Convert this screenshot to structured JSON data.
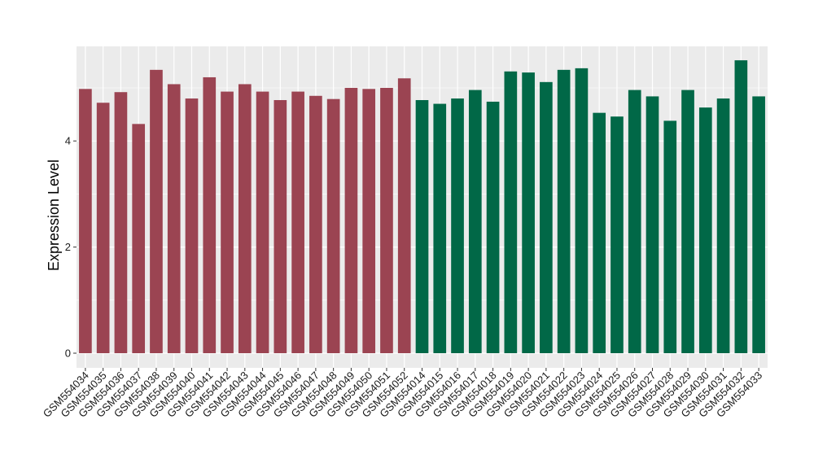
{
  "chart_data": {
    "type": "bar",
    "title": "",
    "xlabel": "",
    "ylabel": "Expression Level",
    "ylim": [
      0,
      5.8
    ],
    "yticks": [
      0,
      2,
      4
    ],
    "grid": true,
    "legend": "none",
    "panel_background": "#ebebeb",
    "grid_color": "#ffffff",
    "colors": {
      "group_a": "#9b4452",
      "group_b": "#016847"
    },
    "categories": [
      "GSM554034",
      "GSM554035",
      "GSM554036",
      "GSM554037",
      "GSM554038",
      "GSM554039",
      "GSM554040",
      "GSM554041",
      "GSM554042",
      "GSM554043",
      "GSM554044",
      "GSM554045",
      "GSM554046",
      "GSM554047",
      "GSM554048",
      "GSM554049",
      "GSM554050",
      "GSM554051",
      "GSM554052",
      "GSM554014",
      "GSM554015",
      "GSM554016",
      "GSM554017",
      "GSM554018",
      "GSM554019",
      "GSM554020",
      "GSM554021",
      "GSM554022",
      "GSM554023",
      "GSM554024",
      "GSM554025",
      "GSM554026",
      "GSM554027",
      "GSM554028",
      "GSM554029",
      "GSM554030",
      "GSM554031",
      "GSM554032",
      "GSM554033"
    ],
    "values": [
      4.98,
      4.72,
      4.92,
      4.32,
      5.34,
      5.07,
      4.8,
      5.2,
      4.93,
      5.07,
      4.93,
      4.77,
      4.93,
      4.85,
      4.79,
      5.0,
      4.98,
      5.0,
      5.18,
      4.77,
      4.7,
      4.8,
      4.96,
      4.74,
      5.31,
      5.29,
      5.11,
      5.34,
      5.37,
      4.53,
      4.46,
      4.96,
      4.84,
      4.38,
      4.96,
      4.63,
      4.8,
      5.52,
      4.84
    ],
    "bar_groups": [
      "a",
      "a",
      "a",
      "a",
      "a",
      "a",
      "a",
      "a",
      "a",
      "a",
      "a",
      "a",
      "a",
      "a",
      "a",
      "a",
      "a",
      "a",
      "a",
      "b",
      "b",
      "b",
      "b",
      "b",
      "b",
      "b",
      "b",
      "b",
      "b",
      "b",
      "b",
      "b",
      "b",
      "b",
      "b",
      "b",
      "b",
      "b",
      "b"
    ]
  }
}
